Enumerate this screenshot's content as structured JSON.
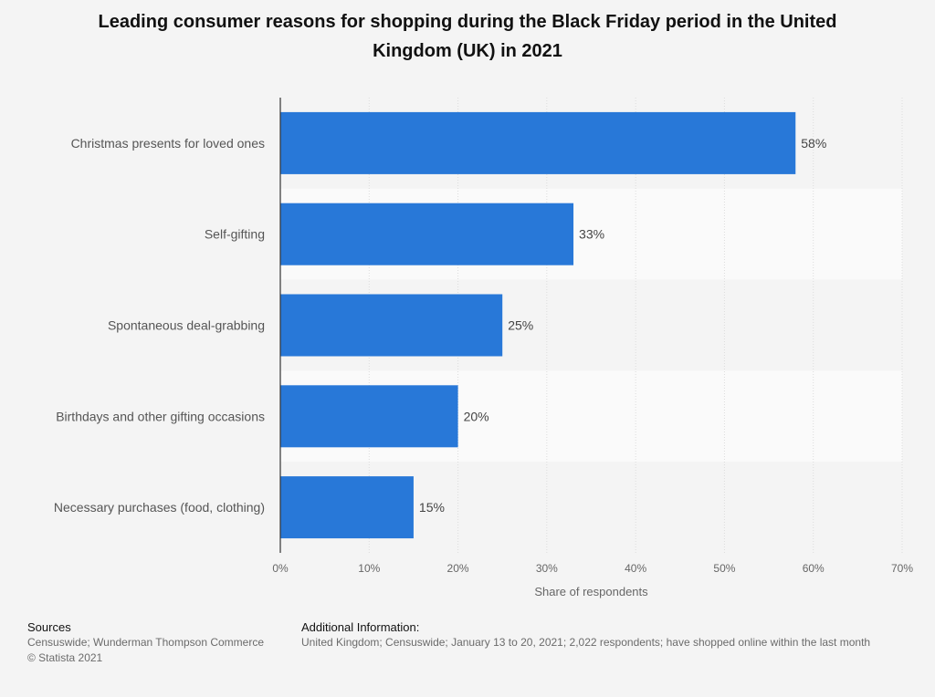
{
  "title_lines": [
    "Leading consumer reasons for shopping during the Black Friday period in the United",
    "Kingdom (UK) in 2021"
  ],
  "chart_data": {
    "type": "bar",
    "orientation": "horizontal",
    "categories": [
      "Christmas presents for loved ones",
      "Self-gifting",
      "Spontaneous deal-grabbing",
      "Birthdays and other gifting occasions",
      "Necessary purchases (food, clothing)"
    ],
    "values": [
      58,
      33,
      25,
      20,
      15
    ],
    "value_labels": [
      "58%",
      "33%",
      "25%",
      "20%",
      "15%"
    ],
    "xlabel": "Share of respondents",
    "xlim": [
      0,
      70
    ],
    "x_ticks": [
      {
        "value": 0,
        "label": "0%"
      },
      {
        "value": 10,
        "label": "10%"
      },
      {
        "value": 20,
        "label": "20%"
      },
      {
        "value": 30,
        "label": "30%"
      },
      {
        "value": 40,
        "label": "40%"
      },
      {
        "value": 50,
        "label": "50%"
      },
      {
        "value": 60,
        "label": "60%"
      },
      {
        "value": 70,
        "label": "70%"
      }
    ],
    "grid": true,
    "bar_color": "#2878d8"
  },
  "footer": {
    "sources_heading": "Sources",
    "sources_text": "Censuswide; Wunderman Thompson Commerce",
    "copyright": "© Statista 2021",
    "additional_heading": "Additional Information:",
    "additional_text": "United Kingdom; Censuswide; January 13 to 20, 2021; 2,022 respondents; have shopped online within the last month"
  }
}
